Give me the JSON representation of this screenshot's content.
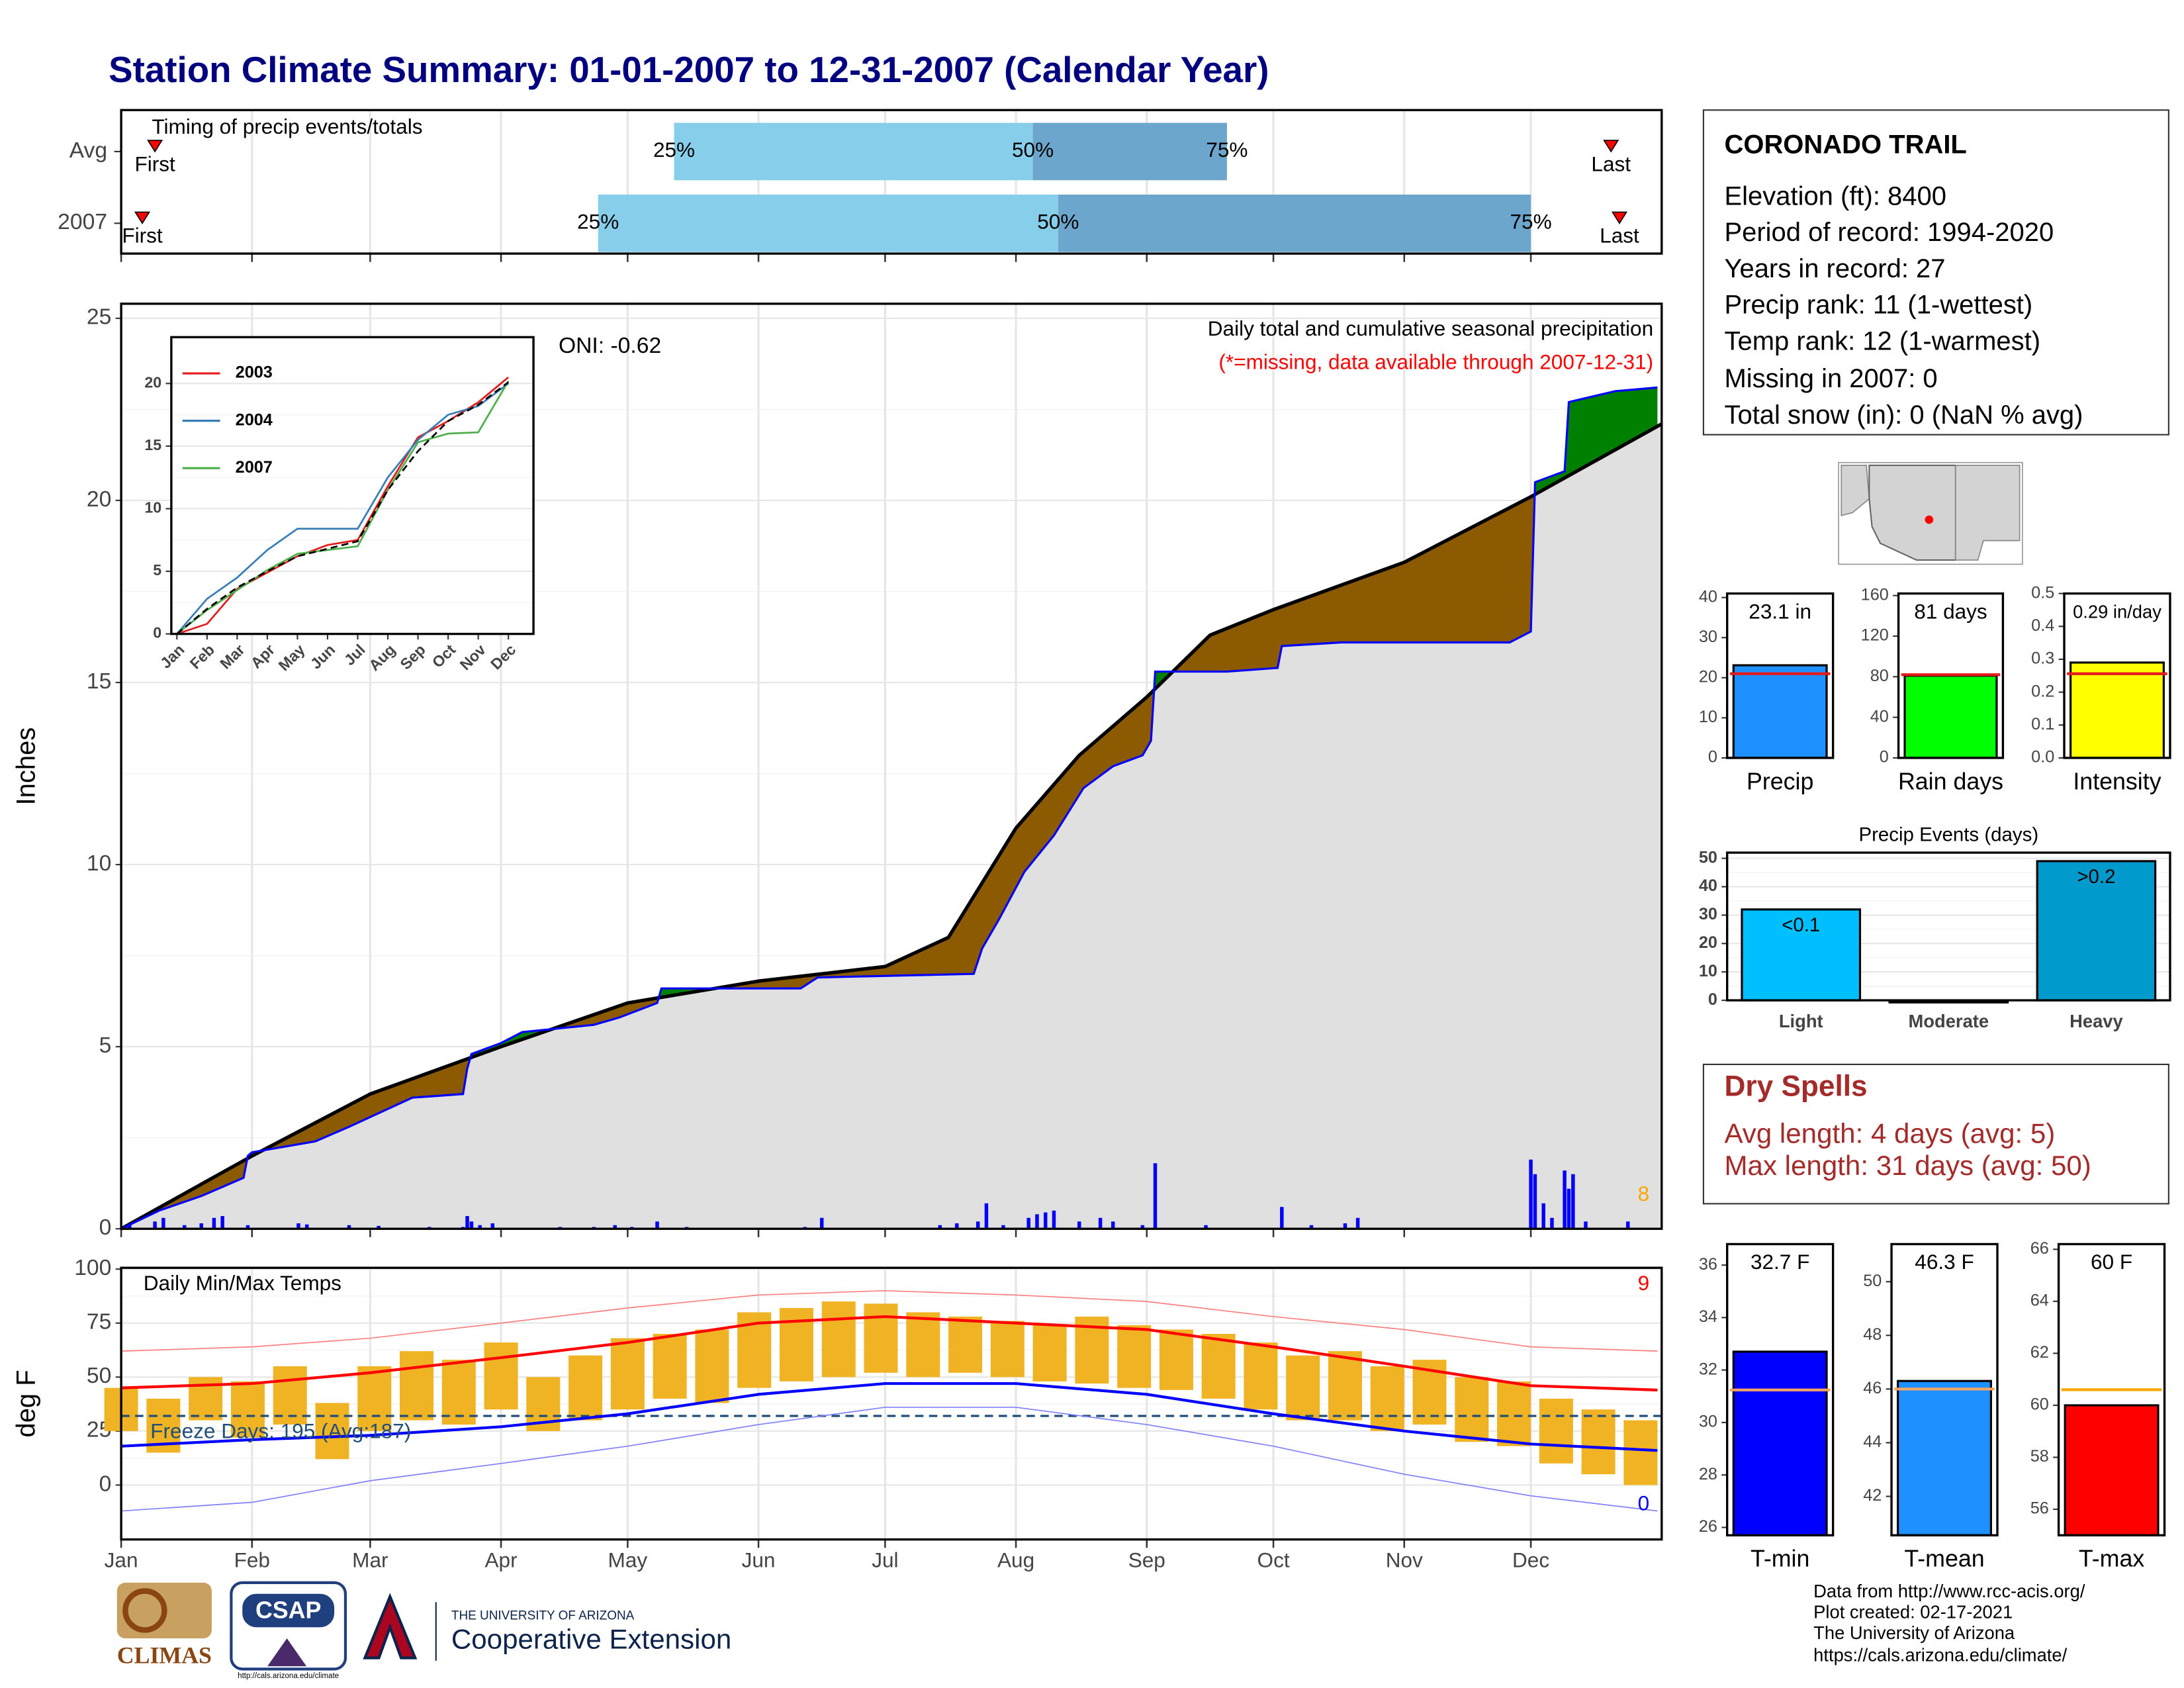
{
  "title": "Station Climate Summary: 01-01-2007 to 12-31-2007 (Calendar Year)",
  "station": {
    "name": "CORONADO TRAIL",
    "lines": [
      "Elevation (ft): 8400",
      "Period of record: 1994-2020",
      "Years in record: 27",
      "Precip rank: 11 (1-wettest)",
      "Temp rank: 12 (1-warmest)",
      "Missing in 2007: 0",
      "Total snow (in): 0 (NaN % avg)"
    ]
  },
  "dry_spells": {
    "title": "Dry Spells",
    "lines": [
      "Avg length: 4 days (avg: 5)",
      "Max length: 31 days (avg: 50)"
    ]
  },
  "footer": [
    "Data from http://www.rcc-acis.org/",
    "Plot created: 02-17-2021",
    "The University of Arizona",
    "https://cals.arizona.edu/climate/"
  ],
  "logos": {
    "climas": "CLIMAS",
    "csap": "CSAP",
    "csap_url": "http://cals.arizona.edu/climate",
    "university": "THE UNIVERSITY OF ARIZONA",
    "extension": "Cooperative Extension"
  },
  "chart_data": [
    {
      "type": "range",
      "title": "Timing of precip events/totals",
      "categories": [
        "Avg",
        "2007"
      ],
      "first": [
        9,
        6
      ],
      "p25": [
        132,
        114
      ],
      "p50": [
        217,
        223
      ],
      "p75": [
        263,
        335
      ],
      "last": [
        354,
        356
      ],
      "labels": {
        "first": "First",
        "p25": "25%",
        "p50": "50%",
        "p75": "75%",
        "last": "Last"
      },
      "colors": [
        "#87ceeb",
        "#6ca6cd"
      ],
      "marker_color": "#ff0000",
      "xlim": [
        1,
        366
      ],
      "xticks": [
        1,
        32,
        60,
        91,
        121,
        152,
        182,
        213,
        244,
        274,
        305,
        335
      ],
      "grid": true
    },
    {
      "type": "area",
      "title": "Daily total and cumulative seasonal precipitation",
      "subtitle": "(*=missing, data available through 2007-12-31)",
      "annotation": "ONI: -0.62",
      "count_label": "8",
      "ylabel": "Inches",
      "xlim": [
        1,
        366
      ],
      "xticks": [
        1,
        32,
        60,
        91,
        121,
        152,
        182,
        213,
        244,
        274,
        305,
        335
      ],
      "ylim": [
        0,
        25.4
      ],
      "yticks": [
        0,
        5,
        10,
        15,
        20,
        25
      ],
      "grid": true,
      "area_color": "#e0e0e0",
      "above_color": "#008000",
      "below_color": "#8c5a00",
      "series": [
        {
          "color": "#000000",
          "x": [
            1,
            32,
            60,
            91,
            121,
            152,
            182,
            197,
            213,
            228,
            244,
            259,
            274,
            305,
            335,
            366
          ],
          "values": [
            0,
            2.0,
            3.7,
            5.0,
            6.2,
            6.8,
            7.2,
            8.0,
            11.0,
            13.0,
            14.6,
            16.3,
            17.0,
            18.3,
            20.1,
            22.1
          ]
        },
        {
          "color": "#0000ff",
          "x": [
            1,
            10,
            20,
            30,
            31,
            32,
            47,
            55,
            70,
            82,
            83,
            84,
            91,
            96,
            113,
            119,
            128,
            129,
            162,
            166,
            203,
            205,
            209,
            215,
            222,
            229,
            236,
            243,
            245,
            246,
            263,
            275,
            276,
            290,
            295,
            330,
            335,
            336,
            343,
            344,
            355,
            365
          ],
          "values": [
            0,
            0.5,
            0.9,
            1.4,
            2.0,
            2.1,
            2.4,
            2.8,
            3.6,
            3.7,
            4.4,
            4.8,
            5.1,
            5.4,
            5.6,
            5.8,
            6.2,
            6.6,
            6.6,
            6.9,
            7.0,
            7.7,
            8.5,
            9.8,
            10.8,
            12.1,
            12.7,
            13.0,
            13.4,
            15.3,
            15.3,
            15.4,
            16.0,
            16.1,
            16.1,
            16.1,
            16.4,
            20.5,
            20.8,
            22.7,
            23.0,
            23.1
          ]
        }
      ],
      "daily": {
        "color": "#0000ff",
        "x": [
          3,
          9,
          11,
          16,
          20,
          23,
          25,
          31,
          43,
          45,
          55,
          62,
          74,
          82,
          83,
          84,
          86,
          89,
          105,
          113,
          118,
          122,
          128,
          135,
          163,
          167,
          195,
          199,
          204,
          206,
          210,
          216,
          218,
          220,
          222,
          228,
          233,
          236,
          243,
          246,
          258,
          276,
          283,
          291,
          294,
          335,
          336,
          338,
          340,
          343,
          344,
          345,
          348,
          358
        ],
        "values": [
          0.1,
          0.2,
          0.3,
          0.1,
          0.15,
          0.3,
          0.35,
          0.1,
          0.15,
          0.12,
          0.1,
          0.08,
          0.05,
          0.05,
          0.35,
          0.2,
          0.1,
          0.15,
          0.05,
          0.05,
          0.1,
          0.05,
          0.2,
          0.05,
          0.05,
          0.3,
          0.1,
          0.15,
          0.2,
          0.7,
          0.1,
          0.3,
          0.4,
          0.45,
          0.5,
          0.2,
          0.3,
          0.2,
          0.1,
          1.8,
          0.1,
          0.6,
          0.1,
          0.15,
          0.3,
          1.9,
          1.5,
          0.7,
          0.3,
          1.6,
          1.1,
          1.5,
          0.2,
          0.2
        ]
      }
    },
    {
      "type": "line",
      "categories": [
        "Jan",
        "Feb",
        "Mar",
        "Apr",
        "May",
        "Jun",
        "Jul",
        "Aug",
        "Sep",
        "Oct",
        "Nov",
        "Dec"
      ],
      "ylim": [
        0,
        23.7
      ],
      "yticks": [
        0,
        5,
        10,
        15,
        20
      ],
      "grid": true,
      "series": [
        {
          "name": "2003",
          "color": "#e41a1c",
          "values": [
            0,
            0.8,
            3.6,
            4.9,
            6.2,
            7.1,
            7.5,
            11.8,
            15.7,
            17.0,
            18.5,
            20.5
          ]
        },
        {
          "name": "2004",
          "color": "#377eb8",
          "values": [
            0,
            2.8,
            4.5,
            6.7,
            8.4,
            8.4,
            8.4,
            12.5,
            15.5,
            17.5,
            18.2,
            20.0
          ]
        },
        {
          "name": "2007",
          "color": "#4daf4a",
          "values": [
            0,
            1.9,
            3.5,
            5.1,
            6.4,
            6.7,
            7.0,
            11.5,
            15.3,
            16.0,
            16.1,
            20.2
          ]
        },
        {
          "color": "#000000",
          "dashed": true,
          "values": [
            0,
            2.0,
            3.7,
            5.0,
            6.2,
            6.8,
            7.4,
            11.5,
            14.6,
            17.0,
            18.3,
            20.1
          ]
        }
      ]
    },
    {
      "type": "bar",
      "categories": [
        "Precip"
      ],
      "values": [
        23.1
      ],
      "value_labels": [
        "23.1 in"
      ],
      "color": "#1e90ff",
      "reference": 21.0,
      "reference_color": "#e41a1c",
      "ylim": [
        0,
        41
      ],
      "yticks": [
        0,
        10,
        20,
        30,
        40
      ]
    },
    {
      "type": "bar",
      "categories": [
        "Rain days"
      ],
      "values": [
        81
      ],
      "value_labels": [
        "81 days"
      ],
      "color": "#00ff00",
      "reference": 82,
      "reference_color": "#e41a1c",
      "ylim": [
        0,
        162
      ],
      "yticks": [
        0,
        40,
        80,
        120,
        160
      ]
    },
    {
      "type": "bar",
      "categories": [
        "Intensity"
      ],
      "values": [
        0.29
      ],
      "value_labels": [
        "0.29 in/day"
      ],
      "color": "#ffff00",
      "reference": 0.256,
      "reference_color": "#e41a1c",
      "ylim": [
        0,
        0.5
      ],
      "yticks": [
        {
          "value": 0,
          "label": "0.0"
        },
        0.1,
        0.2,
        0.3,
        0.4,
        0.5
      ]
    },
    {
      "type": "bar",
      "title": "Precip Events (days)",
      "categories": [
        "Light",
        "Moderate",
        "Heavy"
      ],
      "values": [
        32,
        0,
        49
      ],
      "bar_labels": [
        "<0.1",
        null,
        ">0.2"
      ],
      "colors": [
        "#00bfff",
        "#00bfff",
        "#009acd"
      ],
      "ylim": [
        0,
        52
      ],
      "yticks": [
        0,
        10,
        20,
        30,
        40,
        50
      ],
      "grid": true
    },
    {
      "type": "line",
      "title": "Daily Min/Max Temps",
      "ylabel": "deg F",
      "annotation": "Freeze Days: 195 (Avg:187)",
      "high_count": "9",
      "low_count": "0",
      "freeze_threshold": 32,
      "xlim": [
        1,
        366
      ],
      "xticks": [
        {
          "value": 1,
          "label": "Jan"
        },
        {
          "value": 32,
          "label": "Feb"
        },
        {
          "value": 60,
          "label": "Mar"
        },
        {
          "value": 91,
          "label": "Apr"
        },
        {
          "value": 121,
          "label": "May"
        },
        {
          "value": 152,
          "label": "Jun"
        },
        {
          "value": 182,
          "label": "Jul"
        },
        {
          "value": 213,
          "label": "Aug"
        },
        {
          "value": 244,
          "label": "Sep"
        },
        {
          "value": 274,
          "label": "Oct"
        },
        {
          "value": 305,
          "label": "Nov"
        },
        {
          "value": 335,
          "label": "Dec"
        }
      ],
      "ylim": [
        -25.2,
        100.6
      ],
      "yticks": [
        0,
        25,
        50,
        75,
        100
      ],
      "grid": true,
      "x": [
        1,
        32,
        60,
        91,
        121,
        152,
        182,
        213,
        244,
        274,
        305,
        335,
        365
      ],
      "series": [
        {
          "color": "#ff0000",
          "values": [
            45,
            47,
            52,
            59,
            66,
            75,
            78,
            75,
            72,
            64,
            55,
            46,
            44
          ]
        },
        {
          "color": "#0000ff",
          "values": [
            18,
            21,
            23,
            27,
            33,
            42,
            47,
            47,
            42,
            33,
            25,
            19,
            16
          ]
        },
        {
          "color": "#ff8080",
          "values": [
            62,
            64,
            68,
            75,
            82,
            88,
            90,
            88,
            85,
            78,
            72,
            64,
            62
          ]
        },
        {
          "color": "#8080ff",
          "values": [
            -12,
            -8,
            2,
            10,
            18,
            28,
            36,
            36,
            28,
            18,
            5,
            -5,
            -12
          ]
        }
      ],
      "bars": {
        "color": "#f0b323",
        "x": [
          1,
          11,
          21,
          31,
          41,
          51,
          61,
          71,
          81,
          91,
          101,
          111,
          121,
          131,
          141,
          151,
          161,
          171,
          181,
          191,
          201,
          211,
          221,
          231,
          241,
          251,
          261,
          271,
          281,
          291,
          301,
          311,
          321,
          331,
          341,
          351,
          361
        ],
        "low": [
          25,
          15,
          30,
          22,
          28,
          12,
          25,
          30,
          28,
          35,
          25,
          30,
          35,
          40,
          38,
          45,
          48,
          50,
          52,
          50,
          52,
          50,
          48,
          47,
          45,
          44,
          40,
          35,
          30,
          30,
          25,
          28,
          20,
          18,
          10,
          5,
          0
        ],
        "high": [
          45,
          40,
          50,
          48,
          55,
          38,
          55,
          62,
          58,
          66,
          50,
          60,
          68,
          70,
          72,
          80,
          82,
          85,
          84,
          80,
          78,
          76,
          74,
          78,
          74,
          72,
          70,
          66,
          60,
          62,
          55,
          58,
          50,
          48,
          40,
          35,
          30
        ]
      }
    },
    {
      "type": "bar",
      "categories": [
        "T-min"
      ],
      "values": [
        32.7
      ],
      "value_labels": [
        "32.7 F"
      ],
      "color": "#0000ff",
      "reference": 31.24,
      "reference_color": "#f4a460",
      "ylim": [
        25.7,
        36.8
      ],
      "yticks": [
        26,
        28,
        30,
        32,
        34,
        36
      ]
    },
    {
      "type": "bar",
      "categories": [
        "T-mean"
      ],
      "values": [
        46.3
      ],
      "value_labels": [
        "46.3 F"
      ],
      "color": "#1e90ff",
      "reference": 46.0,
      "reference_color": "#f4a460",
      "ylim": [
        40.55,
        51.4
      ],
      "yticks": [
        42,
        44,
        46,
        48,
        50
      ]
    },
    {
      "type": "bar",
      "categories": [
        "T-max"
      ],
      "values": [
        60
      ],
      "value_labels": [
        "60 F"
      ],
      "color": "#ff0000",
      "reference": 60.6,
      "reference_color": "#ffa500",
      "ylim": [
        55,
        66.2
      ],
      "yticks": [
        56,
        58,
        60,
        62,
        64,
        66
      ]
    }
  ]
}
